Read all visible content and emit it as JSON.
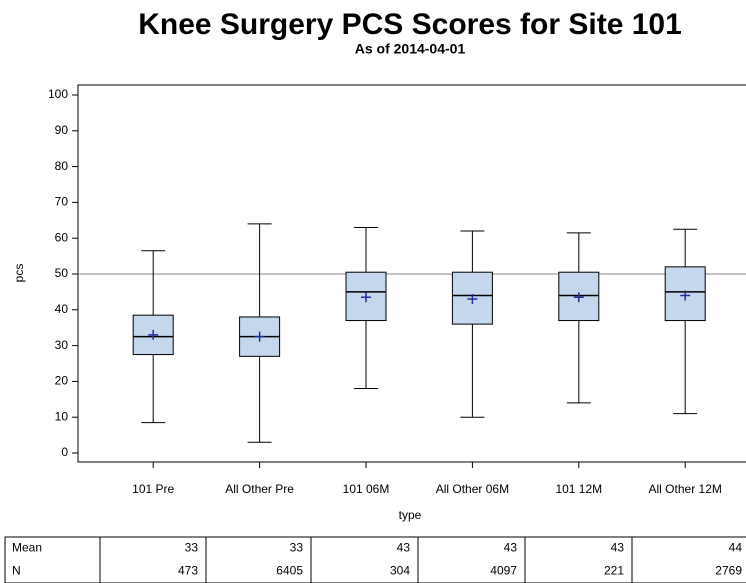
{
  "chart_data": {
    "type": "box",
    "title": "Knee Surgery PCS Scores for Site 101",
    "subtitle": "As of 2014-04-01",
    "x_label": "type",
    "y_label": "pcs",
    "categories": [
      "101 Pre",
      "All Other Pre",
      "101 06M",
      "All Other 06M",
      "101 12M",
      "All Other 12M"
    ],
    "boxes": [
      {
        "min": 8.5,
        "q1": 27.5,
        "median": 32.5,
        "q3": 38.5,
        "max": 56.5,
        "mean": 33
      },
      {
        "min": 3,
        "q1": 27,
        "median": 32.5,
        "q3": 38,
        "max": 64,
        "mean": 32.5
      },
      {
        "min": 18,
        "q1": 37,
        "median": 45,
        "q3": 50.5,
        "max": 63,
        "mean": 43.5
      },
      {
        "min": 10,
        "q1": 36,
        "median": 44,
        "q3": 50.5,
        "max": 62,
        "mean": 43
      },
      {
        "min": 14,
        "q1": 37,
        "median": 44,
        "q3": 50.5,
        "max": 61.5,
        "mean": 43.5
      },
      {
        "min": 11,
        "q1": 37,
        "median": 45,
        "q3": 52,
        "max": 62.5,
        "mean": 44
      }
    ],
    "box_color": "#c5d7ec",
    "mean_color": "#1f2f9f",
    "reference_line": 50,
    "ylim": [
      0,
      100
    ],
    "yticks": [
      0,
      10,
      20,
      30,
      40,
      50,
      60,
      70,
      80,
      90,
      100
    ]
  },
  "table": {
    "rows": [
      {
        "label": "Mean",
        "values": [
          33,
          33,
          43,
          43,
          43,
          44
        ]
      },
      {
        "label": "N",
        "values": [
          473,
          6405,
          304,
          4097,
          221,
          2769
        ]
      }
    ]
  }
}
